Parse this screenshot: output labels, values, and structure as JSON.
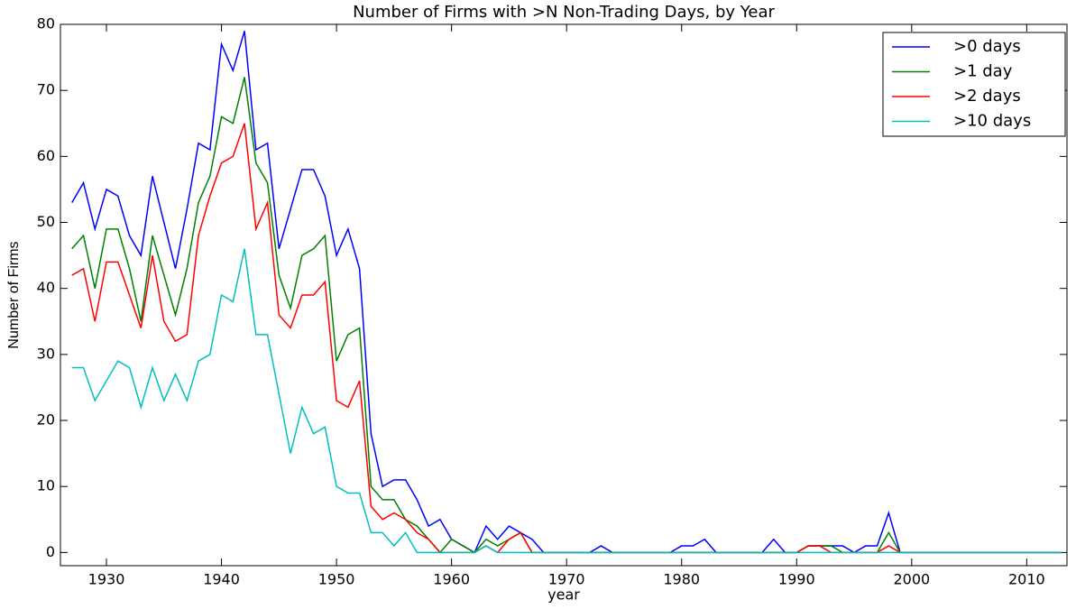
{
  "chart_data": {
    "type": "line",
    "title": "Number of Firms with >N Non-Trading Days, by Year",
    "x_label": "year",
    "y_label": "Number of Firms",
    "x": [
      1927,
      1928,
      1929,
      1930,
      1931,
      1932,
      1933,
      1934,
      1935,
      1936,
      1937,
      1938,
      1939,
      1940,
      1941,
      1942,
      1943,
      1944,
      1945,
      1946,
      1947,
      1948,
      1949,
      1950,
      1951,
      1952,
      1953,
      1954,
      1955,
      1956,
      1957,
      1958,
      1959,
      1960,
      1961,
      1962,
      1963,
      1964,
      1965,
      1966,
      1967,
      1968,
      1969,
      1970,
      1971,
      1972,
      1973,
      1974,
      1975,
      1976,
      1977,
      1978,
      1979,
      1980,
      1981,
      1982,
      1983,
      1984,
      1985,
      1986,
      1987,
      1988,
      1989,
      1990,
      1991,
      1992,
      1993,
      1994,
      1995,
      1996,
      1997,
      1998,
      1999,
      2000,
      2001,
      2002,
      2003,
      2004,
      2005,
      2006,
      2007,
      2008,
      2009,
      2010,
      2011,
      2012,
      2013
    ],
    "series": [
      {
        "name": ">0 days",
        "color": "#0000ff",
        "values": [
          53,
          56,
          49,
          55,
          54,
          48,
          45,
          57,
          50,
          43,
          52,
          62,
          61,
          77,
          73,
          79,
          61,
          62,
          46,
          52,
          58,
          58,
          54,
          45,
          49,
          43,
          18,
          10,
          11,
          11,
          8,
          4,
          5,
          2,
          1,
          0,
          4,
          2,
          4,
          3,
          2,
          0,
          0,
          0,
          0,
          0,
          1,
          0,
          0,
          0,
          0,
          0,
          0,
          1,
          1,
          2,
          0,
          0,
          0,
          0,
          0,
          2,
          0,
          0,
          1,
          1,
          1,
          1,
          0,
          1,
          1,
          6,
          0,
          0,
          0,
          0,
          0,
          0,
          0,
          0,
          0,
          0,
          0,
          0,
          0,
          0,
          0
        ]
      },
      {
        "name": ">1 day",
        "color": "#008000",
        "values": [
          46,
          48,
          40,
          49,
          49,
          43,
          35,
          48,
          42,
          36,
          43,
          53,
          57,
          66,
          65,
          72,
          59,
          56,
          42,
          37,
          45,
          46,
          48,
          29,
          33,
          34,
          10,
          8,
          8,
          5,
          4,
          2,
          0,
          2,
          1,
          0,
          2,
          1,
          2,
          3,
          0,
          0,
          0,
          0,
          0,
          0,
          0,
          0,
          0,
          0,
          0,
          0,
          0,
          0,
          0,
          0,
          0,
          0,
          0,
          0,
          0,
          0,
          0,
          0,
          1,
          1,
          1,
          0,
          0,
          0,
          0,
          3,
          0,
          0,
          0,
          0,
          0,
          0,
          0,
          0,
          0,
          0,
          0,
          0,
          0,
          0,
          0
        ]
      },
      {
        "name": ">2 days",
        "color": "#ff0000",
        "values": [
          42,
          43,
          35,
          44,
          44,
          39,
          34,
          45,
          35,
          32,
          33,
          48,
          54,
          59,
          60,
          65,
          49,
          53,
          36,
          34,
          39,
          39,
          41,
          23,
          22,
          26,
          7,
          5,
          6,
          5,
          3,
          2,
          0,
          0,
          0,
          0,
          1,
          0,
          2,
          3,
          0,
          0,
          0,
          0,
          0,
          0,
          0,
          0,
          0,
          0,
          0,
          0,
          0,
          0,
          0,
          0,
          0,
          0,
          0,
          0,
          0,
          0,
          0,
          0,
          1,
          1,
          0,
          0,
          0,
          0,
          0,
          1,
          0,
          0,
          0,
          0,
          0,
          0,
          0,
          0,
          0,
          0,
          0,
          0,
          0,
          0,
          0
        ]
      },
      {
        "name": ">10 days",
        "color": "#00bfbf",
        "values": [
          28,
          28,
          23,
          26,
          29,
          28,
          22,
          28,
          23,
          27,
          23,
          29,
          30,
          39,
          38,
          46,
          33,
          33,
          24,
          15,
          22,
          18,
          19,
          10,
          9,
          9,
          3,
          3,
          1,
          3,
          0,
          0,
          0,
          0,
          0,
          0,
          1,
          0,
          0,
          0,
          0,
          0,
          0,
          0,
          0,
          0,
          0,
          0,
          0,
          0,
          0,
          0,
          0,
          0,
          0,
          0,
          0,
          0,
          0,
          0,
          0,
          0,
          0,
          0,
          0,
          0,
          0,
          0,
          0,
          0,
          0,
          0,
          0,
          0,
          0,
          0,
          0,
          0,
          0,
          0,
          0,
          0,
          0,
          0,
          0,
          0,
          0
        ]
      }
    ],
    "xlim": [
      1926,
      2013.5
    ],
    "xticks": [
      1930,
      1940,
      1950,
      1960,
      1970,
      1980,
      1990,
      2000,
      2010
    ],
    "ylim": [
      -2,
      80
    ],
    "yticks": [
      0,
      10,
      20,
      30,
      40,
      50,
      60,
      70,
      80
    ],
    "legend": "upper right"
  }
}
